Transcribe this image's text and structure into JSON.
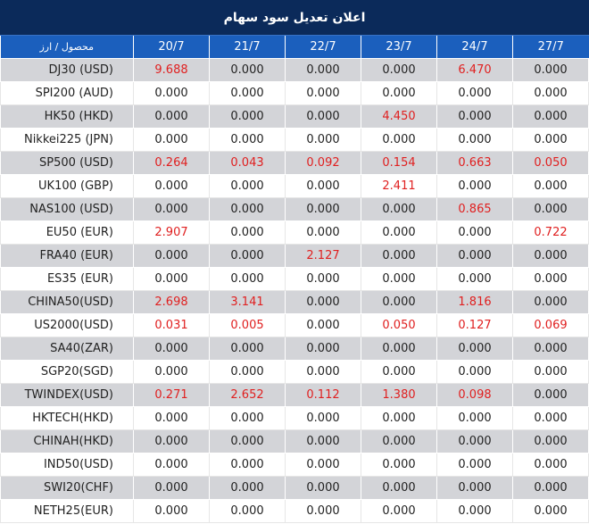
{
  "title": "اعلان تعديل سود سهام",
  "header": {
    "first": "محصول / ارز",
    "dates": [
      "20/7",
      "21/7",
      "22/7",
      "23/7",
      "24/7",
      "27/7"
    ]
  },
  "colors": {
    "title_bg": "#0b2a5a",
    "header_bg": "#1b5fbd",
    "row_alt": "#d3d4d8",
    "highlight": "#e02020"
  },
  "rows": [
    {
      "name": "DJ30 (USD)",
      "values": [
        "9.688",
        "0.000",
        "0.000",
        "0.000",
        "6.470",
        "0.000"
      ]
    },
    {
      "name": "SPI200 (AUD)",
      "values": [
        "0.000",
        "0.000",
        "0.000",
        "0.000",
        "0.000",
        "0.000"
      ]
    },
    {
      "name": "HK50 (HKD)",
      "values": [
        "0.000",
        "0.000",
        "0.000",
        "4.450",
        "0.000",
        "0.000"
      ]
    },
    {
      "name": "Nikkei225 (JPN)",
      "values": [
        "0.000",
        "0.000",
        "0.000",
        "0.000",
        "0.000",
        "0.000"
      ]
    },
    {
      "name": "SP500 (USD)",
      "values": [
        "0.264",
        "0.043",
        "0.092",
        "0.154",
        "0.663",
        "0.050"
      ]
    },
    {
      "name": "UK100 (GBP)",
      "values": [
        "0.000",
        "0.000",
        "0.000",
        "2.411",
        "0.000",
        "0.000"
      ]
    },
    {
      "name": "NAS100 (USD)",
      "values": [
        "0.000",
        "0.000",
        "0.000",
        "0.000",
        "0.865",
        "0.000"
      ]
    },
    {
      "name": "EU50 (EUR)",
      "values": [
        "2.907",
        "0.000",
        "0.000",
        "0.000",
        "0.000",
        "0.722"
      ]
    },
    {
      "name": "FRA40 (EUR)",
      "values": [
        "0.000",
        "0.000",
        "2.127",
        "0.000",
        "0.000",
        "0.000"
      ]
    },
    {
      "name": "ES35 (EUR)",
      "values": [
        "0.000",
        "0.000",
        "0.000",
        "0.000",
        "0.000",
        "0.000"
      ]
    },
    {
      "name": "CHINA50(USD)",
      "values": [
        "2.698",
        "3.141",
        "0.000",
        "0.000",
        "1.816",
        "0.000"
      ]
    },
    {
      "name": "US2000(USD)",
      "values": [
        "0.031",
        "0.005",
        "0.000",
        "0.050",
        "0.127",
        "0.069"
      ]
    },
    {
      "name": "SA40(ZAR)",
      "values": [
        "0.000",
        "0.000",
        "0.000",
        "0.000",
        "0.000",
        "0.000"
      ]
    },
    {
      "name": "SGP20(SGD)",
      "values": [
        "0.000",
        "0.000",
        "0.000",
        "0.000",
        "0.000",
        "0.000"
      ]
    },
    {
      "name": "TWINDEX(USD)",
      "values": [
        "0.271",
        "2.652",
        "0.112",
        "1.380",
        "0.098",
        "0.000"
      ]
    },
    {
      "name": "HKTECH(HKD)",
      "values": [
        "0.000",
        "0.000",
        "0.000",
        "0.000",
        "0.000",
        "0.000"
      ]
    },
    {
      "name": "CHINAH(HKD)",
      "values": [
        "0.000",
        "0.000",
        "0.000",
        "0.000",
        "0.000",
        "0.000"
      ]
    },
    {
      "name": "IND50(USD)",
      "values": [
        "0.000",
        "0.000",
        "0.000",
        "0.000",
        "0.000",
        "0.000"
      ]
    },
    {
      "name": "SWI20(CHF)",
      "values": [
        "0.000",
        "0.000",
        "0.000",
        "0.000",
        "0.000",
        "0.000"
      ]
    },
    {
      "name": "NETH25(EUR)",
      "values": [
        "0.000",
        "0.000",
        "0.000",
        "0.000",
        "0.000",
        "0.000"
      ]
    }
  ]
}
